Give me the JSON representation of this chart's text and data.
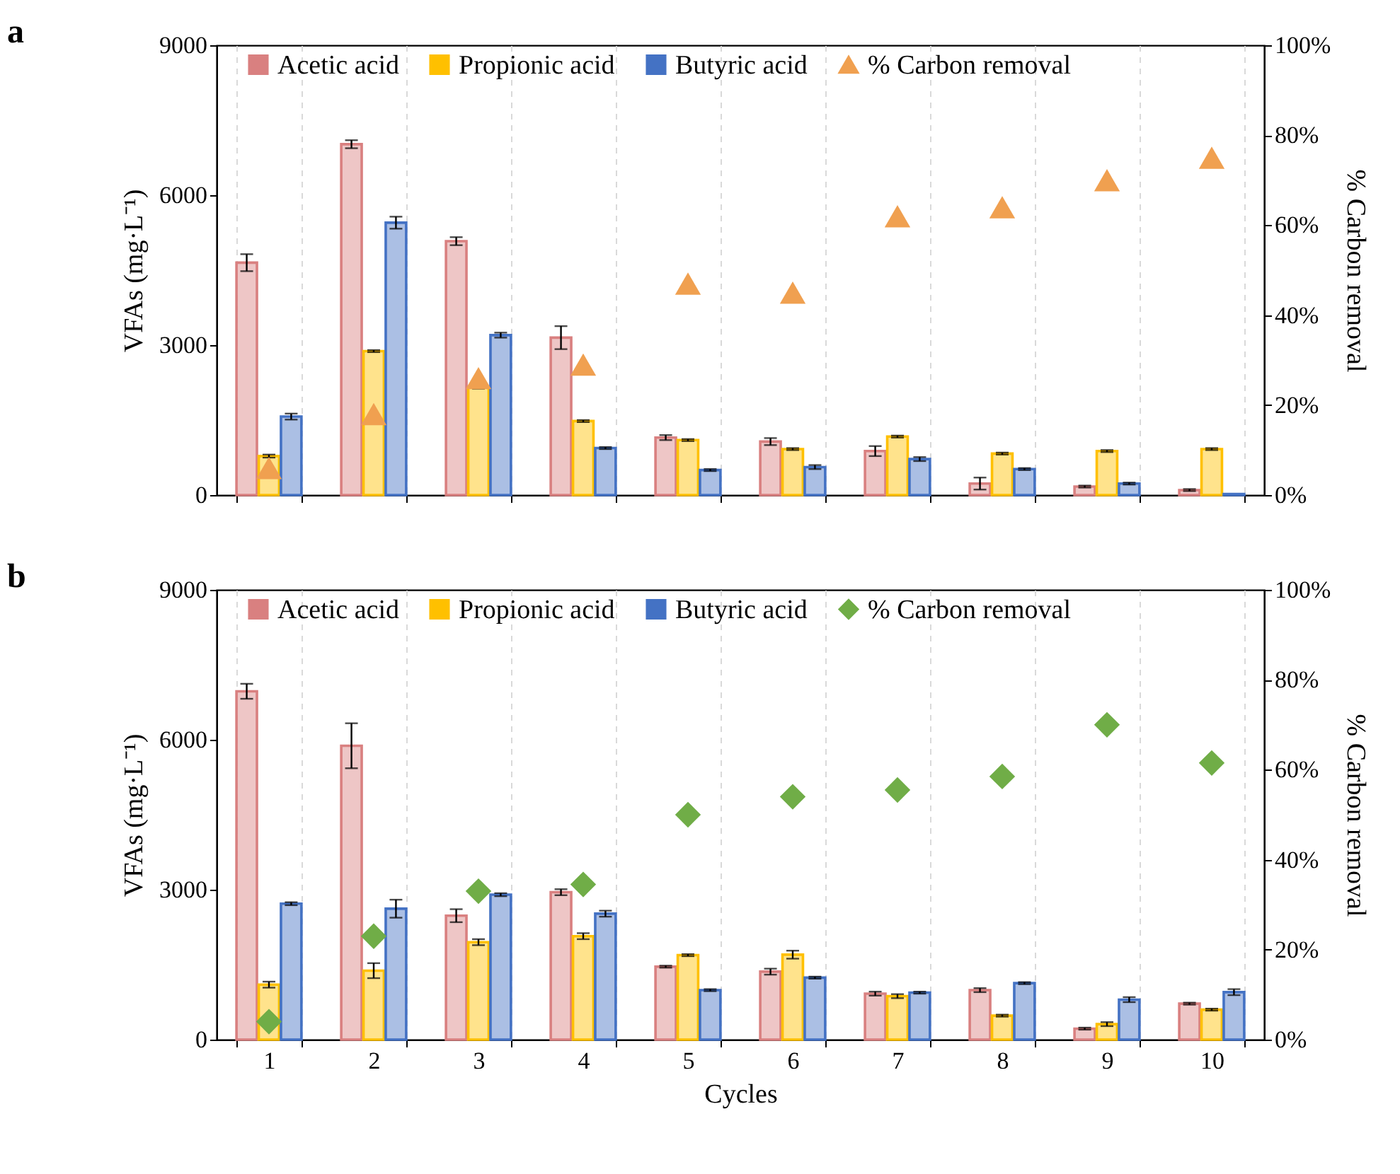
{
  "chart_data": [
    {
      "type": "bar",
      "title": "a",
      "ylabel": "VFAs (mg·L⁻¹)",
      "y2label": "% Carbon removal",
      "categories": [
        "1",
        "2",
        "3",
        "4",
        "5",
        "6",
        "7",
        "8",
        "9",
        "10"
      ],
      "series": [
        {
          "name": "Acetic acid",
          "color": "#d98080",
          "values": [
            4650,
            7020,
            5080,
            3150,
            1150,
            1070,
            880,
            230,
            170,
            100
          ],
          "errors": [
            170,
            80,
            80,
            230,
            50,
            70,
            100,
            120,
            20,
            20
          ]
        },
        {
          "name": "Propionic acid",
          "color": "#ffc000",
          "values": [
            780,
            2880,
            2150,
            1480,
            1100,
            920,
            1170,
            830,
            880,
            920
          ],
          "errors": [
            30,
            20,
            20,
            20,
            20,
            20,
            20,
            20,
            20,
            20
          ]
        },
        {
          "name": "Butyric acid",
          "color": "#4472c4",
          "values": [
            1570,
            5450,
            3200,
            940,
            500,
            560,
            720,
            520,
            230,
            20
          ],
          "errors": [
            60,
            120,
            50,
            20,
            20,
            40,
            40,
            20,
            20,
            null
          ]
        },
        {
          "name": "% Carbon removal",
          "type": "scatter",
          "axis": "y2",
          "color": "#f0a050",
          "values": [
            6,
            18,
            26,
            29,
            47,
            45,
            62,
            64,
            70,
            75
          ]
        }
      ],
      "ylim": [
        0,
        9000
      ],
      "yticks": [
        0,
        3000,
        6000,
        9000
      ],
      "y2lim": [
        0,
        100
      ],
      "y2ticks": [
        {
          "value": 0,
          "label": "0%"
        },
        {
          "value": 20,
          "label": "20%"
        },
        {
          "value": 40,
          "label": "40%"
        },
        {
          "value": 60,
          "label": "60%"
        },
        {
          "value": 80,
          "label": "80%"
        },
        {
          "value": 100,
          "label": "100%"
        }
      ],
      "grid": "x",
      "legend": "top",
      "marker": "triangle",
      "tick_labels": "y"
    },
    {
      "type": "bar",
      "title": "b",
      "xlabel": "Cycles",
      "ylabel": "VFAs (mg·L⁻¹)",
      "y2label": "% Carbon removal",
      "categories": [
        "1",
        "2",
        "3",
        "4",
        "5",
        "6",
        "7",
        "8",
        "9",
        "10"
      ],
      "series": [
        {
          "name": "Acetic acid",
          "color": "#d98080",
          "values": [
            6970,
            5880,
            2480,
            2950,
            1460,
            1360,
            920,
            990,
            220,
            720
          ],
          "errors": [
            150,
            450,
            130,
            60,
            20,
            60,
            40,
            40,
            20,
            20
          ]
        },
        {
          "name": "Propionic acid",
          "color": "#ffc000",
          "values": [
            1100,
            1380,
            1950,
            2070,
            1690,
            1700,
            870,
            480,
            310,
            600
          ],
          "errors": [
            60,
            150,
            60,
            60,
            20,
            80,
            40,
            20,
            40,
            20
          ]
        },
        {
          "name": "Butyric acid",
          "color": "#4472c4",
          "values": [
            2720,
            2620,
            2900,
            2520,
            990,
            1240,
            940,
            1130,
            800,
            950
          ],
          "errors": [
            30,
            180,
            30,
            60,
            20,
            20,
            20,
            20,
            50,
            60
          ]
        },
        {
          "name": "% Carbon removal",
          "type": "scatter",
          "axis": "y2",
          "color": "#70ad47",
          "values": [
            4,
            23,
            33,
            34.5,
            50,
            54,
            55.5,
            58.5,
            70,
            61.5
          ]
        }
      ],
      "ylim": [
        0,
        9000
      ],
      "yticks": [
        0,
        3000,
        6000,
        9000
      ],
      "y2lim": [
        0,
        100
      ],
      "y2ticks": [
        {
          "value": 0,
          "label": "0%"
        },
        {
          "value": 20,
          "label": "20%"
        },
        {
          "value": 40,
          "label": "40%"
        },
        {
          "value": 60,
          "label": "60%"
        },
        {
          "value": 80,
          "label": "80%"
        },
        {
          "value": 100,
          "label": "100%"
        }
      ],
      "grid": "x",
      "legend": "top",
      "marker": "diamond"
    }
  ]
}
